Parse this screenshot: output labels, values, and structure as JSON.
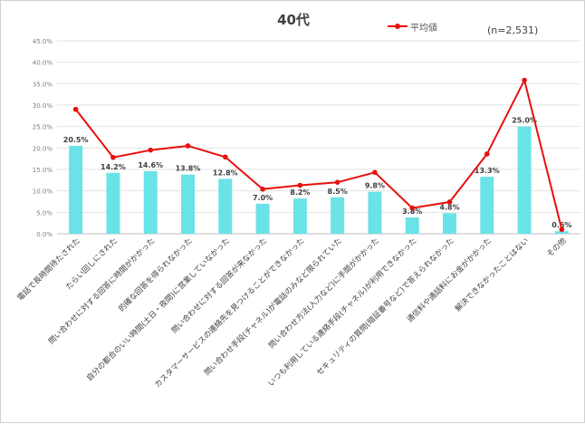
{
  "chart_data": {
    "type": "bar",
    "title": "40代",
    "note": "(n=2,531)",
    "categories": [
      "電話で長時間待たされた",
      "たらい回しにされた",
      "問い合わせに対する回答に時間がかかった",
      "的確な回答を得られなかった",
      "自分の都合のいい時間(土日・夜間)に営業していなかった",
      "問い合わせに対する回答が来なかった",
      "カスタマーサービスの連絡先を見つけることができなかった",
      "問い合わせ手段(チャネル)が電話のみなど限られていた",
      "問い合わせ方法(入力など)に手間がかかった",
      "いつも利用している連絡手段(チャネル)が利用できなかった",
      "セキュリティの質問(暗証番号など)で答えられなかった",
      "通信料や通話料にお金がかかった",
      "解決できなかったことはない",
      "その他"
    ],
    "series": [
      {
        "kind": "bar",
        "values": [
          20.5,
          14.2,
          14.6,
          13.8,
          12.8,
          7.0,
          8.2,
          8.5,
          9.8,
          3.8,
          4.8,
          13.3,
          25.0,
          0.6
        ],
        "labels": [
          "20.5%",
          "14.2%",
          "14.6%",
          "13.8%",
          "12.8%",
          "7.0%",
          "8.2%",
          "8.5%",
          "9.8%",
          "3.8%",
          "4.8%",
          "13.3%",
          "25.0%",
          "0.6%"
        ],
        "color": "#6ae3e8"
      },
      {
        "kind": "line",
        "name": "平均値",
        "values": [
          29.0,
          17.8,
          19.5,
          20.5,
          17.9,
          10.4,
          11.3,
          12.0,
          14.3,
          6.0,
          7.4,
          18.6,
          35.8,
          1.0
        ],
        "color": "#e8100c"
      }
    ],
    "y_ticks": [
      "0.0%",
      "5.0%",
      "10.0%",
      "15.0%",
      "20.0%",
      "25.0%",
      "30.0%",
      "35.0%",
      "40.0%",
      "45.0%"
    ],
    "ylim": [
      0,
      45
    ],
    "xlabel": "",
    "ylabel": "",
    "grid": true,
    "legend_position": "top-right"
  }
}
